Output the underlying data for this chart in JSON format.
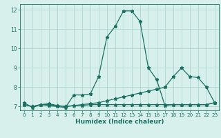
{
  "xlabel": "Humidex (Indice chaleur)",
  "bg_color": "#d8f0ec",
  "grid_color": "#b0d8d0",
  "line_color": "#1a7060",
  "xlim": [
    -0.5,
    23.5
  ],
  "ylim": [
    6.8,
    12.3
  ],
  "xticks": [
    0,
    1,
    2,
    3,
    4,
    5,
    6,
    7,
    8,
    9,
    10,
    11,
    12,
    13,
    14,
    15,
    16,
    17,
    18,
    19,
    20,
    21,
    22,
    23
  ],
  "yticks": [
    7,
    8,
    9,
    10,
    11,
    12
  ],
  "line1_x": [
    0,
    1,
    2,
    3,
    4,
    5,
    6,
    7,
    8,
    9,
    10,
    11,
    12,
    13,
    14,
    15,
    16,
    17,
    18,
    19,
    20,
    21,
    22,
    23
  ],
  "line1_y": [
    7.2,
    6.95,
    7.1,
    7.05,
    7.0,
    6.95,
    7.6,
    7.6,
    7.65,
    8.55,
    10.6,
    11.15,
    11.95,
    11.95,
    11.4,
    9.0,
    8.4,
    7.05,
    7.1,
    7.1,
    7.1,
    7.1,
    7.1,
    7.2
  ],
  "line2_x": [
    0,
    1,
    2,
    3,
    4,
    5,
    6,
    7,
    8,
    9,
    10,
    11,
    12,
    13,
    14,
    15,
    16,
    17,
    18,
    19,
    20,
    21,
    22,
    23
  ],
  "line2_y": [
    7.1,
    7.0,
    7.1,
    7.1,
    7.05,
    7.0,
    7.05,
    7.1,
    7.15,
    7.2,
    7.3,
    7.4,
    7.5,
    7.6,
    7.7,
    7.8,
    7.9,
    8.0,
    8.55,
    9.0,
    8.55,
    8.5,
    8.0,
    7.2
  ],
  "line3_x": [
    0,
    1,
    2,
    3,
    4,
    5,
    6,
    7,
    8,
    9,
    10,
    11,
    12,
    13,
    14,
    15,
    16,
    17,
    18,
    19,
    20,
    21,
    22,
    23
  ],
  "line3_y": [
    7.1,
    7.0,
    7.1,
    7.15,
    7.05,
    7.0,
    7.05,
    7.05,
    7.1,
    7.1,
    7.1,
    7.1,
    7.1,
    7.1,
    7.1,
    7.1,
    7.1,
    7.1,
    7.1,
    7.1,
    7.1,
    7.1,
    7.1,
    7.2
  ],
  "marker": "*",
  "marker_size": 3.5,
  "line_width": 0.9
}
